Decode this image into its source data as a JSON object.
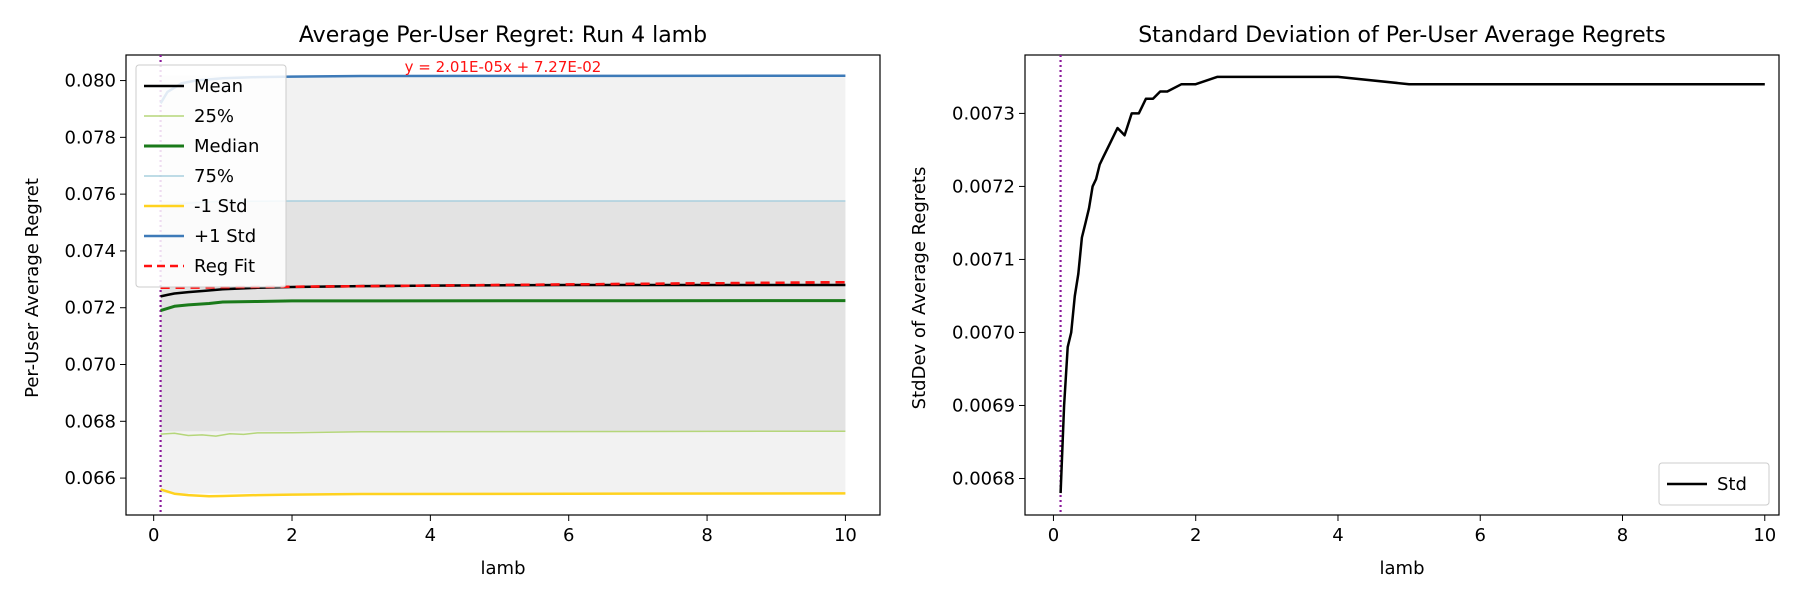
{
  "chart_data": [
    {
      "type": "line",
      "title": "Average Per-User Regret: Run 4 lamb",
      "xlabel": "lamb",
      "ylabel": "Per-User Average Regret",
      "xlim": [
        -0.4,
        10.5
      ],
      "ylim": [
        0.0647,
        0.0809
      ],
      "xticks": [
        0,
        2,
        4,
        6,
        8,
        10
      ],
      "yticks": [
        0.066,
        0.068,
        0.07,
        0.072,
        0.074,
        0.076,
        0.078,
        0.08
      ],
      "ytick_labels": [
        "0.066",
        "0.068",
        "0.070",
        "0.072",
        "0.074",
        "0.076",
        "0.078",
        "0.080"
      ],
      "xtick_labels": [
        "0",
        "2",
        "4",
        "6",
        "8",
        "10"
      ],
      "vline_x": 0.1,
      "annotation": "y = 2.01E-05x + 7.27E-02",
      "legend_position": "upper left",
      "series": [
        {
          "name": "Mean",
          "color": "#000000",
          "width": 2.5,
          "dash": "",
          "x": [
            0.1,
            0.2,
            0.3,
            0.5,
            0.75,
            1.0,
            1.5,
            2.0,
            3.0,
            4.0,
            6.0,
            8.0,
            10.0
          ],
          "y": [
            0.0724,
            0.07245,
            0.0725,
            0.07255,
            0.0726,
            0.07265,
            0.0727,
            0.07273,
            0.07276,
            0.07278,
            0.0728,
            0.0728,
            0.0728
          ]
        },
        {
          "name": "25%",
          "color": "#b5d67a",
          "width": 1.5,
          "dash": "",
          "x": [
            0.1,
            0.3,
            0.5,
            0.7,
            0.9,
            1.1,
            1.3,
            1.5,
            2.0,
            3.0,
            10.0
          ],
          "y": [
            0.06755,
            0.06758,
            0.0675,
            0.06752,
            0.06748,
            0.06756,
            0.06754,
            0.06759,
            0.0676,
            0.06763,
            0.06765
          ]
        },
        {
          "name": "Median",
          "color": "#1a7a1a",
          "width": 3,
          "dash": "",
          "x": [
            0.1,
            0.3,
            0.5,
            0.8,
            1.0,
            1.5,
            2.0,
            10.0
          ],
          "y": [
            0.0719,
            0.07205,
            0.0721,
            0.07215,
            0.0722,
            0.07222,
            0.07224,
            0.07225
          ]
        },
        {
          "name": "75%",
          "color": "#a9d0de",
          "width": 1.5,
          "dash": "",
          "x": [
            0.1,
            0.3,
            0.6,
            1.0,
            1.5,
            2.0,
            10.0
          ],
          "y": [
            0.0756,
            0.07565,
            0.0757,
            0.07575,
            0.07575,
            0.07576,
            0.07576
          ]
        },
        {
          "name": "-1 Std",
          "color": "#ffd21f",
          "width": 2.5,
          "dash": "",
          "x": [
            0.1,
            0.3,
            0.5,
            0.8,
            1.0,
            1.5,
            2.0,
            3.0,
            10.0
          ],
          "y": [
            0.0656,
            0.06545,
            0.0654,
            0.06536,
            0.06537,
            0.0654,
            0.06542,
            0.06544,
            0.06546
          ]
        },
        {
          "name": "+1 Std",
          "color": "#3d7ab8",
          "width": 2.5,
          "dash": "",
          "x": [
            0.1,
            0.2,
            0.4,
            0.6,
            1.0,
            1.5,
            2.0,
            3.0,
            10.0
          ],
          "y": [
            0.0792,
            0.0796,
            0.0799,
            0.08,
            0.08008,
            0.08012,
            0.08014,
            0.08016,
            0.08017
          ]
        },
        {
          "name": "Reg Fit",
          "color": "#ff1010",
          "width": 2.5,
          "dash": "9,6",
          "x": [
            0.1,
            10.0
          ],
          "y": [
            0.0727,
            0.0729
          ]
        }
      ]
    },
    {
      "type": "line",
      "title": "Standard Deviation of Per-User Average Regrets",
      "xlabel": "lamb",
      "ylabel": "StdDev of Average Regrets",
      "xlim": [
        -0.4,
        10.2
      ],
      "ylim": [
        0.00675,
        0.00738
      ],
      "xticks": [
        0,
        2,
        4,
        6,
        8,
        10
      ],
      "xtick_labels": [
        "0",
        "2",
        "4",
        "6",
        "8",
        "10"
      ],
      "yticks": [
        0.0068,
        0.0069,
        0.007,
        0.0071,
        0.0072,
        0.0073
      ],
      "ytick_labels": [
        "0.0068",
        "0.0069",
        "0.0070",
        "0.0071",
        "0.0072",
        "0.0073"
      ],
      "vline_x": 0.1,
      "legend_position": "lower right",
      "series": [
        {
          "name": "Std",
          "color": "#000000",
          "width": 2.5,
          "dash": "",
          "x": [
            0.1,
            0.15,
            0.2,
            0.25,
            0.3,
            0.35,
            0.4,
            0.45,
            0.5,
            0.55,
            0.6,
            0.65,
            0.7,
            0.8,
            0.9,
            1.0,
            1.1,
            1.2,
            1.3,
            1.4,
            1.5,
            1.6,
            1.8,
            2.0,
            2.3,
            2.6,
            3.0,
            3.5,
            4.0,
            5.0,
            6.0,
            8.0,
            10.0
          ],
          "y": [
            0.00678,
            0.0069,
            0.00698,
            0.007,
            0.00705,
            0.00708,
            0.00713,
            0.00715,
            0.00717,
            0.0072,
            0.00721,
            0.00723,
            0.00724,
            0.00726,
            0.00728,
            0.00727,
            0.0073,
            0.0073,
            0.00732,
            0.00732,
            0.00733,
            0.00733,
            0.00734,
            0.00734,
            0.00735,
            0.00735,
            0.00735,
            0.00735,
            0.00735,
            0.00734,
            0.00734,
            0.00734,
            0.00734
          ]
        }
      ]
    }
  ]
}
